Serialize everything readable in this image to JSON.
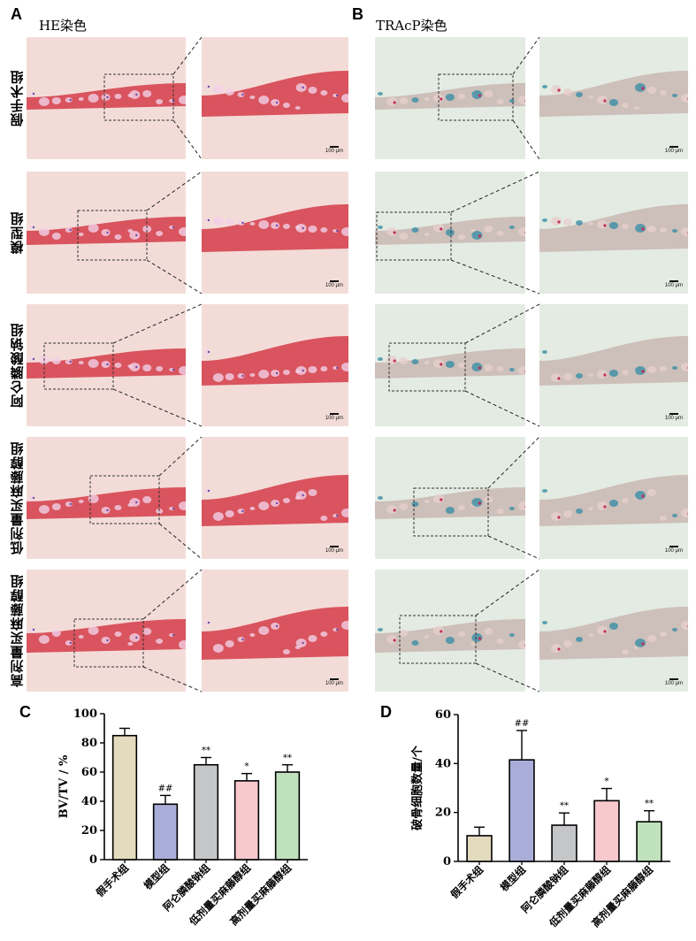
{
  "figure": {
    "panels": [
      {
        "letter": "A",
        "title": "HE染色"
      },
      {
        "letter": "B",
        "title": "TRAcP染色"
      },
      {
        "letter": "C"
      },
      {
        "letter": "D"
      }
    ],
    "groups": [
      "假手术组",
      "模型组",
      "阿仑膦酸钠组",
      "低剂量买麻藤醇组",
      "高剂量买麻藤醇组"
    ],
    "scale_bar": "100 μm",
    "colors": {
      "he_bg": "#f3dcd8",
      "he_tissue": "#d9545e",
      "tracp_bg": "#e3ebe2",
      "tracp_tissue": "#c9b7b2",
      "tracp_stain": "#3b8fa6",
      "sham": "#e3dbbd",
      "model": "#a9aed8",
      "alendronate": "#c5c6c8",
      "low_dose": "#f7c9cc",
      "high_dose": "#bfe2bc"
    }
  },
  "chart_data": [
    {
      "type": "bar",
      "panel": "C",
      "categories": [
        "假手术组",
        "模型组",
        "阿仑膦酸钠组",
        "低剂量买麻藤醇组",
        "高剂量买麻藤醇组"
      ],
      "values": [
        85,
        38,
        65,
        54,
        60
      ],
      "errors": [
        5,
        6,
        5,
        5,
        5
      ],
      "annotations": [
        "",
        "##",
        "**",
        "*",
        "**"
      ],
      "ylabel": "BV/TV / %",
      "ylim": [
        0,
        100
      ],
      "yticks": [
        "0",
        "20",
        "40",
        "60",
        "80",
        "100"
      ],
      "colors": [
        "#e3dbbd",
        "#a9aed8",
        "#c5c6c8",
        "#f7c9cc",
        "#bfe2bc"
      ]
    },
    {
      "type": "bar",
      "panel": "D",
      "categories": [
        "假手术组",
        "模型组",
        "阿仑膦酸钠组",
        "低剂量买麻藤醇组",
        "高剂量买麻藤醇组"
      ],
      "values": [
        10.5,
        41.5,
        14.8,
        24.8,
        16.2
      ],
      "errors": [
        3.5,
        12,
        5,
        5,
        4.5
      ],
      "annotations": [
        "",
        "##",
        "**",
        "*",
        "**"
      ],
      "ylabel": "破骨细胞数量/个",
      "ylim": [
        0,
        60
      ],
      "yticks": [
        "0",
        "20",
        "40",
        "60"
      ],
      "colors": [
        "#e3dbbd",
        "#a9aed8",
        "#c5c6c8",
        "#f7c9cc",
        "#bfe2bc"
      ]
    }
  ]
}
